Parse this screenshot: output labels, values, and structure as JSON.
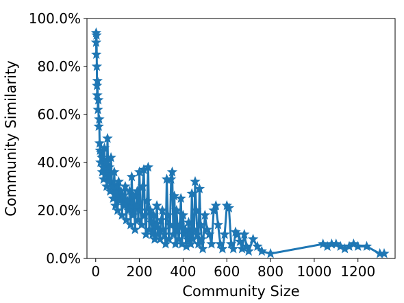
{
  "chart_data": {
    "type": "line",
    "xlabel": "Community Size",
    "ylabel": "Community Similarity",
    "xlim": [
      -40,
      1370
    ],
    "ylim": [
      0,
      100
    ],
    "x_ticks": [
      0,
      200,
      400,
      600,
      800,
      1000,
      1200
    ],
    "y_ticks": [
      0,
      20,
      40,
      60,
      80,
      100
    ],
    "y_tick_labels": [
      "0.0%",
      "20.0%",
      "40.0%",
      "60.0%",
      "80.0%",
      "100.0%"
    ],
    "grid": false,
    "legend": "none",
    "marker": "star",
    "color": "#1f77b4",
    "series": [
      {
        "x": [
          2,
          2,
          3,
          4,
          5,
          6,
          7,
          8,
          10,
          12,
          14,
          16,
          18,
          20,
          22,
          25,
          28,
          30,
          33,
          36,
          40,
          43,
          46,
          50,
          54,
          58,
          62,
          66,
          70,
          75,
          80,
          85,
          90,
          95,
          100,
          105,
          110,
          115,
          120,
          125,
          130,
          135,
          140,
          145,
          150,
          155,
          160,
          165,
          170,
          175,
          180,
          185,
          190,
          195,
          200,
          205,
          210,
          215,
          220,
          225,
          230,
          235,
          240,
          245,
          250,
          255,
          260,
          265,
          270,
          275,
          280,
          285,
          290,
          295,
          300,
          305,
          310,
          315,
          320,
          325,
          330,
          335,
          340,
          345,
          350,
          355,
          360,
          365,
          370,
          375,
          380,
          385,
          390,
          395,
          400,
          405,
          410,
          415,
          420,
          425,
          430,
          435,
          440,
          445,
          450,
          455,
          460,
          465,
          470,
          475,
          480,
          485,
          490,
          500,
          510,
          520,
          530,
          540,
          550,
          560,
          570,
          580,
          590,
          600,
          610,
          620,
          630,
          640,
          650,
          660,
          670,
          680,
          690,
          700,
          720,
          740,
          760,
          800,
          1040,
          1060,
          1080,
          1100,
          1120,
          1140,
          1160,
          1180,
          1200,
          1240,
          1300,
          1320
        ],
        "y": [
          94,
          90,
          85,
          93,
          80,
          72,
          68,
          74,
          62,
          66,
          55,
          58,
          48,
          45,
          40,
          44,
          42,
          36,
          38,
          33,
          46,
          35,
          40,
          30,
          50,
          32,
          38,
          28,
          42,
          30,
          25,
          36,
          22,
          30,
          20,
          32,
          24,
          28,
          18,
          26,
          22,
          30,
          16,
          24,
          20,
          28,
          14,
          34,
          18,
          26,
          12,
          22,
          28,
          16,
          36,
          20,
          14,
          30,
          37,
          18,
          10,
          24,
          38,
          12,
          20,
          15,
          10,
          18,
          8,
          14,
          22,
          10,
          12,
          8,
          16,
          20,
          12,
          10,
          6,
          33,
          18,
          8,
          14,
          33,
          36,
          10,
          26,
          6,
          20,
          12,
          8,
          14,
          25,
          6,
          18,
          10,
          12,
          5,
          8,
          15,
          10,
          6,
          27,
          8,
          12,
          32,
          20,
          10,
          6,
          29,
          14,
          8,
          4,
          18,
          12,
          10,
          6,
          20,
          22,
          14,
          6,
          4,
          10,
          22,
          21,
          6,
          4,
          11,
          10,
          7,
          4,
          10,
          5,
          3,
          8,
          5,
          3,
          2,
          6,
          5,
          6,
          6,
          5,
          4,
          5,
          6,
          5,
          5,
          2,
          2
        ]
      }
    ]
  }
}
